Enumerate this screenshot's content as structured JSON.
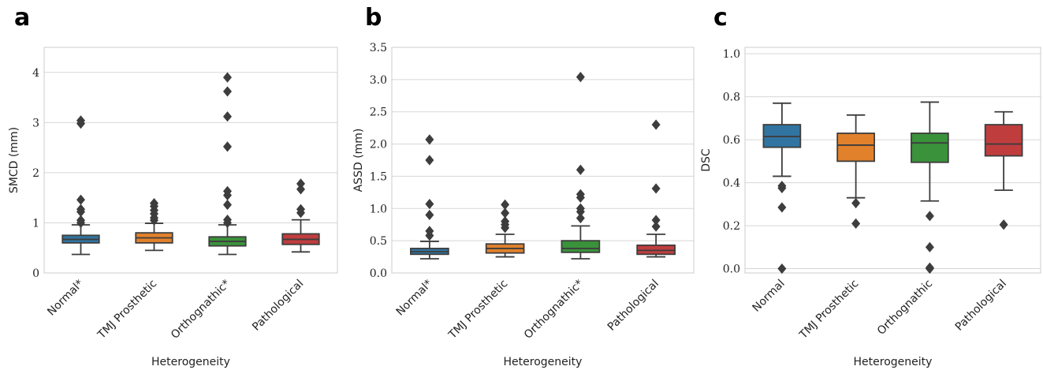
{
  "chart_data": [
    {
      "type": "box",
      "panel": "a",
      "xlabel": "Heterogeneity",
      "ylabel": "SMCD (mm)",
      "ylim": [
        0,
        4.5
      ],
      "yticks": [
        0,
        1,
        2,
        3,
        4
      ],
      "ytick_labels": [
        "0",
        "1",
        "2",
        "3",
        "4"
      ],
      "grid": true,
      "categories": [
        "Normal*",
        "TMJ Prosthetic",
        "Orthognathic*",
        "Pathological"
      ],
      "colors": [
        "#3274a1",
        "#e1812c",
        "#3a923a",
        "#c03d3e"
      ],
      "boxes": [
        {
          "whisker_low": 0.37,
          "q1": 0.6,
          "median": 0.67,
          "q3": 0.75,
          "whisker_high": 0.96,
          "outliers": [
            3.04,
            2.98,
            1.46,
            1.27,
            1.22,
            1.05,
            1.0
          ]
        },
        {
          "whisker_low": 0.45,
          "q1": 0.6,
          "median": 0.7,
          "q3": 0.8,
          "whisker_high": 0.99,
          "outliers": [
            1.39,
            1.33,
            1.25,
            1.18,
            1.1,
            1.05
          ]
        },
        {
          "whisker_low": 0.37,
          "q1": 0.54,
          "median": 0.63,
          "q3": 0.72,
          "whisker_high": 0.96,
          "outliers": [
            3.9,
            3.62,
            3.12,
            2.52,
            1.63,
            1.55,
            1.36,
            1.06,
            1.0
          ]
        },
        {
          "whisker_low": 0.42,
          "q1": 0.57,
          "median": 0.67,
          "q3": 0.78,
          "whisker_high": 1.06,
          "outliers": [
            1.78,
            1.67,
            1.27,
            1.2
          ]
        }
      ]
    },
    {
      "type": "box",
      "panel": "b",
      "xlabel": "Heterogeneity",
      "ylabel": "ASSD (mm)",
      "ylim": [
        0,
        3.5
      ],
      "yticks": [
        0,
        0.5,
        1,
        1.5,
        2,
        2.5,
        3,
        3.5
      ],
      "ytick_labels": [
        "0.0",
        "0.5",
        "1.0",
        "1.5",
        "2.0",
        "2.5",
        "3.0",
        "3.5"
      ],
      "grid": true,
      "categories": [
        "Normal*",
        "TMJ Prosthetic",
        "Orthognathic*",
        "Pathological"
      ],
      "colors": [
        "#3274a1",
        "#e1812c",
        "#3a923a",
        "#c03d3e"
      ],
      "boxes": [
        {
          "whisker_low": 0.22,
          "q1": 0.29,
          "median": 0.33,
          "q3": 0.38,
          "whisker_high": 0.49,
          "outliers": [
            2.07,
            1.75,
            1.07,
            0.9,
            0.65,
            0.58
          ]
        },
        {
          "whisker_low": 0.25,
          "q1": 0.31,
          "median": 0.38,
          "q3": 0.45,
          "whisker_high": 0.6,
          "outliers": [
            1.06,
            0.93,
            0.8,
            0.75,
            0.7
          ]
        },
        {
          "whisker_low": 0.22,
          "q1": 0.32,
          "median": 0.38,
          "q3": 0.5,
          "whisker_high": 0.73,
          "outliers": [
            3.04,
            1.6,
            1.22,
            1.17,
            1.0,
            0.95,
            0.85
          ]
        },
        {
          "whisker_low": 0.25,
          "q1": 0.29,
          "median": 0.35,
          "q3": 0.43,
          "whisker_high": 0.6,
          "outliers": [
            2.3,
            1.31,
            0.82,
            0.72
          ]
        }
      ]
    },
    {
      "type": "box",
      "panel": "c",
      "xlabel": "Heterogeneity",
      "ylabel": "DSC",
      "ylim": [
        -0.02,
        1.03
      ],
      "yticks": [
        0,
        0.2,
        0.4,
        0.6,
        0.8,
        1.0
      ],
      "ytick_labels": [
        "0.0",
        "0.2",
        "0.4",
        "0.6",
        "0.8",
        "1.0"
      ],
      "grid": true,
      "categories": [
        "Normal",
        "TMJ Prosthetic",
        "Orthognathic",
        "Pathological"
      ],
      "colors": [
        "#3274a1",
        "#e1812c",
        "#3a923a",
        "#c03d3e"
      ],
      "boxes": [
        {
          "whisker_low": 0.43,
          "q1": 0.565,
          "median": 0.615,
          "q3": 0.67,
          "whisker_high": 0.77,
          "outliers": [
            0.385,
            0.375,
            0.285,
            0.0
          ]
        },
        {
          "whisker_low": 0.33,
          "q1": 0.5,
          "median": 0.575,
          "q3": 0.63,
          "whisker_high": 0.715,
          "outliers": [
            0.305,
            0.21
          ]
        },
        {
          "whisker_low": 0.315,
          "q1": 0.495,
          "median": 0.585,
          "q3": 0.63,
          "whisker_high": 0.775,
          "outliers": [
            0.245,
            0.1,
            0.005,
            0.0
          ]
        },
        {
          "whisker_low": 0.365,
          "q1": 0.525,
          "median": 0.58,
          "q3": 0.67,
          "whisker_high": 0.73,
          "outliers": [
            0.205
          ]
        }
      ]
    }
  ]
}
